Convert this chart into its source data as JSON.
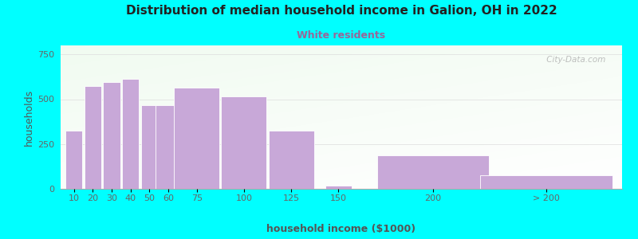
{
  "title": "Distribution of median household income in Galion, OH in 2022",
  "subtitle": "White residents",
  "xlabel": "household income ($1000)",
  "ylabel": "households",
  "background_color": "#00FFFF",
  "bar_color": "#C8A8D8",
  "title_color": "#222222",
  "subtitle_color": "#996699",
  "axis_label_color": "#555555",
  "tick_label_color": "#666666",
  "ylim": [
    0,
    800
  ],
  "yticks": [
    0,
    250,
    500,
    750
  ],
  "bar_centers": [
    10,
    20,
    30,
    40,
    50,
    60,
    75,
    100,
    125,
    150,
    200,
    260
  ],
  "bar_heights": [
    325,
    575,
    595,
    615,
    465,
    465,
    565,
    515,
    325,
    20,
    185,
    75
  ],
  "bar_widths": [
    9,
    9,
    9,
    9,
    9,
    14,
    24,
    24,
    24,
    14,
    59,
    70
  ],
  "xtick_positions": [
    10,
    20,
    30,
    40,
    50,
    60,
    75,
    100,
    125,
    150,
    200
  ],
  "xtick_labels": [
    "10",
    "20",
    "30",
    "40",
    "50",
    "60",
    "75",
    "100",
    "125",
    "150",
    "200"
  ],
  "gt200_x": 260,
  "gt200_label": "> 200",
  "xlim": [
    3,
    300
  ],
  "watermark": " City-Data.com",
  "plot_grad_colors": [
    "#e8f5e8",
    "#f8fff8",
    "#ffffff"
  ],
  "grid_color": "#dddddd",
  "title_fontsize": 11,
  "subtitle_fontsize": 9,
  "tick_fontsize": 8,
  "label_fontsize": 9
}
